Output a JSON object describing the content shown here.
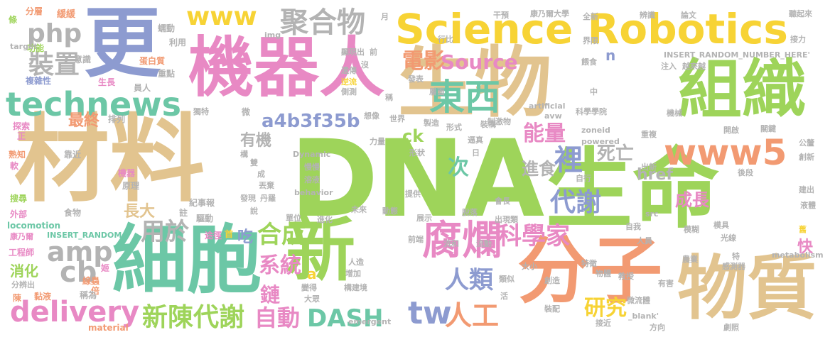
{
  "palette": {
    "tan": "#e2c48f",
    "green": "#9ed45a",
    "yellow": "#f7d335",
    "pink": "#e889c4",
    "orange": "#f29a72",
    "blue": "#8d9bd0",
    "teal": "#6cc7a6",
    "gray": "#b3b3b3"
  },
  "words": [
    {
      "id": "dna",
      "text": "DNA",
      "color": "#9ed45a"
    },
    {
      "id": "cailiao",
      "text": "材料",
      "color": "#e2c48f"
    },
    {
      "id": "shengming",
      "text": "生命",
      "color": "#9ed45a"
    },
    {
      "id": "jiqiren",
      "text": "機器人",
      "color": "#e889c4"
    },
    {
      "id": "shengwu",
      "text": "生物",
      "color": "#e2c48f"
    },
    {
      "id": "xibao",
      "text": "細胞",
      "color": "#6cc7a6"
    },
    {
      "id": "xin",
      "text": "新",
      "color": "#9ed45a"
    },
    {
      "id": "fenzi",
      "text": "分子",
      "color": "#f29a72"
    },
    {
      "id": "wuzhi",
      "text": "物質",
      "color": "#e2c48f"
    },
    {
      "id": "geng",
      "text": "更",
      "color": "#8d9bd0"
    },
    {
      "id": "zuzhi",
      "text": "組織",
      "color": "#9ed45a"
    },
    {
      "id": "science_robotics",
      "text": "Science Robotics",
      "color": "#f7d335"
    },
    {
      "id": "technews",
      "text": "technews",
      "color": "#6cc7a6"
    },
    {
      "id": "dongxi",
      "text": "東西",
      "color": "#6cc7a6"
    },
    {
      "id": "fulan",
      "text": "腐爛",
      "color": "#e889c4"
    },
    {
      "id": "www5",
      "text": "www5",
      "color": "#f29a72"
    },
    {
      "id": "www",
      "text": "www",
      "color": "#f7d335"
    },
    {
      "id": "juhewu",
      "text": "聚合物",
      "color": "#b3b3b3"
    },
    {
      "id": "php",
      "text": "php",
      "color": "#b3b3b3"
    },
    {
      "id": "zhuangzhi",
      "text": "裝置",
      "color": "#b3b3b3"
    },
    {
      "id": "dianying",
      "text": "電影",
      "color": "#f29a72"
    },
    {
      "id": "source",
      "text": "Source",
      "color": "#e889c4"
    },
    {
      "id": "amp",
      "text": "amp",
      "color": "#b3b3b3"
    },
    {
      "id": "yongyu",
      "text": "用於",
      "color": "#b3b3b3"
    },
    {
      "id": "cb",
      "text": "cb",
      "color": "#b3b3b3"
    },
    {
      "id": "delivery",
      "text": "delivery",
      "color": "#e889c4"
    },
    {
      "id": "xinchendaixie",
      "text": "新陳代謝",
      "color": "#9ed45a"
    },
    {
      "id": "zidong",
      "text": "自動",
      "color": "#e889c4"
    },
    {
      "id": "dash",
      "text": "DASH",
      "color": "#6cc7a6"
    },
    {
      "id": "tw",
      "text": "tw",
      "color": "#8d9bd0"
    },
    {
      "id": "rengong",
      "text": "人工",
      "color": "#f29a72"
    },
    {
      "id": "renlei",
      "text": "人類",
      "color": "#8d9bd0"
    },
    {
      "id": "kexuejia",
      "text": "科學家",
      "color": "#e889c4"
    },
    {
      "id": "hecheng",
      "text": "合成",
      "color": "#9ed45a"
    },
    {
      "id": "xitong",
      "text": "系統",
      "color": "#e889c4"
    },
    {
      "id": "lian",
      "text": "鏈",
      "color": "#e889c4"
    },
    {
      "id": "yanjiu",
      "text": "研究",
      "color": "#f7d335"
    },
    {
      "id": "daixie",
      "text": "代謝",
      "color": "#8d9bd0"
    },
    {
      "id": "li",
      "text": "裡",
      "color": "#8d9bd0"
    },
    {
      "id": "nengliang",
      "text": "能量",
      "color": "#e889c4"
    },
    {
      "id": "a4b3f35b",
      "text": "a4b3f35b",
      "color": "#8d9bd0"
    },
    {
      "id": "youji",
      "text": "有機",
      "color": "#b3b3b3"
    },
    {
      "id": "ck",
      "text": "ck",
      "color": "#9ed45a"
    },
    {
      "id": "ci",
      "text": "次",
      "color": "#6cc7a6"
    },
    {
      "id": "jinshi",
      "text": "進食",
      "color": "#b3b3b3"
    },
    {
      "id": "siwang",
      "text": "死亡",
      "color": "#b3b3b3"
    },
    {
      "id": "href",
      "text": "href",
      "color": "#b3b3b3"
    },
    {
      "id": "chengzhang",
      "text": "成長",
      "color": "#e889c4"
    },
    {
      "id": "zhangda",
      "text": "長大",
      "color": "#e2c48f"
    },
    {
      "id": "zuizhong",
      "text": "最終",
      "color": "#f29a72"
    },
    {
      "id": "chi",
      "text": "吃",
      "color": "#8d9bd0"
    },
    {
      "id": "kuai",
      "text": "快",
      "color": "#e889c4"
    },
    {
      "id": "xiaohua",
      "text": "消化",
      "color": "#9ed45a"
    },
    {
      "id": "n",
      "text": "n",
      "color": "#8d9bd0"
    },
    {
      "id": "a",
      "text": "a",
      "color": "#f7d335"
    },
    {
      "id": "fenceng",
      "text": "分層",
      "color": "#f29a72"
    },
    {
      "id": "huanhuan",
      "text": "緩緩",
      "color": "#f29a72"
    },
    {
      "id": "tiao",
      "text": "條",
      "color": "#9ed45a"
    },
    {
      "id": "rutan",
      "text": "蠕動",
      "color": "#b3b3b3"
    },
    {
      "id": "liyong",
      "text": "利用",
      "color": "#b3b3b3"
    },
    {
      "id": "gongneng",
      "text": "功能",
      "color": "#9ed45a"
    },
    {
      "id": "target",
      "text": "target",
      "color": "#b3b3b3"
    },
    {
      "id": "danbaizhi",
      "text": "蛋白質",
      "color": "#f29a72"
    },
    {
      "id": "yishi",
      "text": "意識",
      "color": "#b3b3b3"
    },
    {
      "id": "zhongdian",
      "text": "重點",
      "color": "#b3b3b3"
    },
    {
      "id": "fuzaxing",
      "text": "複雜性",
      "color": "#8d9bd0"
    },
    {
      "id": "shengchan",
      "text": "生長",
      "color": "#e889c4"
    },
    {
      "id": "yuanren",
      "text": "員人",
      "color": "#b3b3b3"
    },
    {
      "id": "pailie",
      "text": "排列",
      "color": "#b3b3b3"
    },
    {
      "id": "tansuo",
      "text": "探索",
      "color": "#e889c4"
    },
    {
      "id": "zheng",
      "text": "正",
      "color": "#e889c4"
    },
    {
      "id": "kaojin",
      "text": "靠近",
      "color": "#b3b3b3"
    },
    {
      "id": "shuzhi",
      "text": "熟知",
      "color": "#f29a72"
    },
    {
      "id": "ruan",
      "text": "軟",
      "color": "#e889c4"
    },
    {
      "id": "jiqi",
      "text": "機器",
      "color": "#e889c4"
    },
    {
      "id": "yuanli",
      "text": "原理",
      "color": "#b3b3b3"
    },
    {
      "id": "soushou",
      "text": "搜尋",
      "color": "#9ed45a"
    },
    {
      "id": "waibu",
      "text": "外部",
      "color": "#e889c4"
    },
    {
      "id": "shiwu",
      "text": "食物",
      "color": "#b3b3b3"
    },
    {
      "id": "locomotion",
      "text": "locomotion",
      "color": "#6cc7a6"
    },
    {
      "id": "kangnaier",
      "text": "康乃爾",
      "color": "#e889c4"
    },
    {
      "id": "insert_random_small",
      "text": "INSERT_RANDOM_",
      "color": "#6cc7a6"
    },
    {
      "id": "gongchengshi",
      "text": "工程師",
      "color": "#e889c4"
    },
    {
      "id": "bei",
      "text": "倍",
      "color": "#f29a72"
    },
    {
      "id": "fenbianchu",
      "text": "分辨出",
      "color": "#b3b3b3"
    },
    {
      "id": "chen",
      "text": "陳",
      "color": "#f29a72"
    },
    {
      "id": "zhanye",
      "text": "黏液",
      "color": "#f29a72"
    },
    {
      "id": "chengwei",
      "text": "稱為",
      "color": "#b3b3b3"
    },
    {
      "id": "xianchong",
      "text": "線蟲",
      "color": "#f29a72"
    },
    {
      "id": "material",
      "text": "material",
      "color": "#f29a72"
    },
    {
      "id": "ji",
      "text": "姬",
      "color": "#e889c4"
    },
    {
      "id": "tujing",
      "text": "途徑",
      "color": "#e889c4"
    },
    {
      "id": "shou",
      "text": "首",
      "color": "#f7d335"
    },
    {
      "id": "qudong",
      "text": "驅動",
      "color": "#b3b3b3"
    },
    {
      "id": "jishibao",
      "text": "紀事報",
      "color": "#b3b3b3"
    },
    {
      "id": "zhu",
      "text": "註",
      "color": "#b3b3b3"
    },
    {
      "id": "img",
      "text": "img",
      "color": "#b3b3b3"
    },
    {
      "id": "xianxianchu",
      "text": "顯現出",
      "color": "#b3b3b3"
    },
    {
      "id": "yichuan",
      "text": "遺傳",
      "color": "#b3b3b3"
    },
    {
      "id": "nixing",
      "text": "逆流",
      "color": "#f7d335"
    },
    {
      "id": "cece",
      "text": "側測",
      "color": "#b3b3b3"
    },
    {
      "id": "wei",
      "text": "微",
      "color": "#b3b3b3"
    },
    {
      "id": "shijie",
      "text": "世界",
      "color": "#b3b3b3"
    },
    {
      "id": "xiangxiang",
      "text": "想像",
      "color": "#b3b3b3"
    },
    {
      "id": "dute",
      "text": "獨特",
      "color": "#b3b3b3"
    },
    {
      "id": "gou",
      "text": "構",
      "color": "#b3b3b3"
    },
    {
      "id": "shuang",
      "text": "雙",
      "color": "#b3b3b3"
    },
    {
      "id": "cheng",
      "text": "成",
      "color": "#b3b3b3"
    },
    {
      "id": "diuqi",
      "text": "丟棄",
      "color": "#b3b3b3"
    },
    {
      "id": "faxian",
      "text": "發現",
      "color": "#b3b3b3"
    },
    {
      "id": "danluo",
      "text": "丹羅",
      "color": "#b3b3b3"
    },
    {
      "id": "shuo",
      "text": "說",
      "color": "#b3b3b3"
    },
    {
      "id": "danwei",
      "text": "單位",
      "color": "#b3b3b3"
    },
    {
      "id": "jinhua",
      "text": "進化",
      "color": "#b3b3b3"
    },
    {
      "id": "weilai",
      "text": "未來",
      "color": "#b3b3b3"
    },
    {
      "id": "dongtai",
      "text": "動態",
      "color": "#b3b3b3"
    },
    {
      "id": "zhanshi",
      "text": "展示",
      "color": "#b3b3b3"
    },
    {
      "id": "tuoluo",
      "text": "脫落",
      "color": "#b3b3b3"
    },
    {
      "id": "chuxianxiang",
      "text": "出現類",
      "color": "#b3b3b3"
    },
    {
      "id": "zhizao",
      "text": "製造",
      "color": "#b3b3b3"
    },
    {
      "id": "xingshi",
      "text": "形式",
      "color": "#b3b3b3"
    },
    {
      "id": "zhuanggou",
      "text": "裝構",
      "color": "#b3b3b3"
    },
    {
      "id": "bizhen",
      "text": "逼真",
      "color": "#b3b3b3"
    },
    {
      "id": "ri",
      "text": "日",
      "color": "#b3b3b3"
    },
    {
      "id": "liliang",
      "text": "力量",
      "color": "#b3b3b3"
    },
    {
      "id": "xingzhuang",
      "text": "形狀",
      "color": "#b3b3b3"
    },
    {
      "id": "dynamic",
      "text": "Dynamic",
      "color": "#b3b3b3"
    },
    {
      "id": "manman",
      "text": "慢慢",
      "color": "#b3b3b3"
    },
    {
      "id": "rongye",
      "text": "溶液",
      "color": "#b3b3b3"
    },
    {
      "id": "behavior",
      "text": "behavior",
      "color": "#b3b3b3"
    },
    {
      "id": "tigong",
      "text": "提供",
      "color": "#b3b3b3"
    },
    {
      "id": "huihui",
      "text": "會長",
      "color": "#b3b3b3"
    },
    {
      "id": "zixing",
      "text": "自行",
      "color": "#b3b3b3"
    },
    {
      "id": "chuxin",
      "text": "出新",
      "color": "#b3b3b3"
    },
    {
      "id": "fabiao",
      "text": "發表",
      "color": "#b3b3b3"
    },
    {
      "id": "cengmian",
      "text": "層面",
      "color": "#b3b3b3"
    },
    {
      "id": "cheng2",
      "text": "稱",
      "color": "#b3b3b3"
    },
    {
      "id": "zhijiwu",
      "text": "制激物",
      "color": "#b3b3b3"
    },
    {
      "id": "kexueyuan",
      "text": "科學學院",
      "color": "#b3b3b3"
    },
    {
      "id": "artificial",
      "text": "artificial",
      "color": "#b3b3b3"
    },
    {
      "id": "avw",
      "text": "avw",
      "color": "#b3b3b3"
    },
    {
      "id": "zhong",
      "text": "中",
      "color": "#b3b3b3"
    },
    {
      "id": "zoneid",
      "text": "zoneid",
      "color": "#b3b3b3"
    },
    {
      "id": "powered",
      "text": "powered",
      "color": "#b3b3b3"
    },
    {
      "id": "chongfu",
      "text": "重複",
      "color": "#b3b3b3"
    },
    {
      "id": "jixie",
      "text": "機械",
      "color": "#b3b3b3"
    },
    {
      "id": "kaiqi",
      "text": "開啟",
      "color": "#b3b3b3"
    },
    {
      "id": "guanjian",
      "text": "關鍵",
      "color": "#b3b3b3"
    },
    {
      "id": "gongxin",
      "text": "公釐",
      "color": "#b3b3b3"
    },
    {
      "id": "chuangxin",
      "text": "創新",
      "color": "#b3b3b3"
    },
    {
      "id": "houduan",
      "text": "後段",
      "color": "#b3b3b3"
    },
    {
      "id": "jianchu",
      "text": "建出",
      "color": "#b3b3b3"
    },
    {
      "id": "yegan",
      "text": "液體",
      "color": "#b3b3b3"
    },
    {
      "id": "moju",
      "text": "模具",
      "color": "#b3b3b3"
    },
    {
      "id": "src",
      "text": "src",
      "color": "#b3b3b3"
    },
    {
      "id": "ziwo",
      "text": "自我",
      "color": "#b3b3b3"
    },
    {
      "id": "mohu",
      "text": "模糊",
      "color": "#b3b3b3"
    },
    {
      "id": "renyuan",
      "text": "人員",
      "color": "#b3b3b3"
    },
    {
      "id": "guangxian",
      "text": "光線",
      "color": "#b3b3b3"
    },
    {
      "id": "jiu",
      "text": "舊",
      "color": "#f7d335"
    },
    {
      "id": "metabolism",
      "text": "metabolism",
      "color": "#b3b3b3"
    },
    {
      "id": "te",
      "text": "特",
      "color": "#b3b3b3"
    },
    {
      "id": "nongye",
      "text": "農業",
      "color": "#b3b3b3"
    },
    {
      "id": "ganceqi",
      "text": "感測器",
      "color": "#b3b3b3"
    },
    {
      "id": "tezheng",
      "text": "特徵",
      "color": "#b3b3b3"
    },
    {
      "id": "wupin",
      "text": "物體",
      "color": "#b3b3b3"
    },
    {
      "id": "jiaoshou",
      "text": "教授",
      "color": "#b3b3b3"
    },
    {
      "id": "youhai",
      "text": "有害",
      "color": "#b3b3b3"
    },
    {
      "id": "chuangzao",
      "text": "創造",
      "color": "#b3b3b3"
    },
    {
      "id": "weiliuti",
      "text": "微流體",
      "color": "#b3b3b3"
    },
    {
      "id": "jiejin",
      "text": "接近",
      "color": "#b3b3b3"
    },
    {
      "id": "blank",
      "text": "_blank'",
      "color": "#b3b3b3"
    },
    {
      "id": "fangxiang",
      "text": "方向",
      "color": "#b3b3b3"
    },
    {
      "id": "juzhao",
      "text": "劇照",
      "color": "#b3b3b3"
    },
    {
      "id": "zhuru",
      "text": "注入",
      "color": "#b3b3b3"
    },
    {
      "id": "jieli",
      "text": "接力",
      "color": "#b3b3b3"
    },
    {
      "id": "yue",
      "text": "月",
      "color": "#b3b3b3"
    },
    {
      "id": "qian",
      "text": "前",
      "color": "#b3b3b3"
    },
    {
      "id": "mei",
      "text": "沒",
      "color": "#b3b3b3"
    },
    {
      "id": "xingbi",
      "text": "行比",
      "color": "#b3b3b3"
    },
    {
      "id": "ganyu",
      "text": "干預",
      "color": "#b3b3b3"
    },
    {
      "id": "kangnaierdaxue",
      "text": "康乃爾大學",
      "color": "#b3b3b3"
    },
    {
      "id": "quanxin",
      "text": "全新",
      "color": "#b3b3b3"
    },
    {
      "id": "bianshi",
      "text": "辨識",
      "color": "#b3b3b3"
    },
    {
      "id": "lunwen",
      "text": "論文",
      "color": "#b3b3b3"
    },
    {
      "id": "tingqilai",
      "text": "聽起來",
      "color": "#b3b3b3"
    },
    {
      "id": "jiexian",
      "text": "界限",
      "color": "#b3b3b3"
    },
    {
      "id": "insert_random_big",
      "text": "INSERT_RANDOM_NUMBER_HERE'",
      "color": "#b3b3b3"
    },
    {
      "id": "yuelaiyue",
      "text": "越來越",
      "color": "#b3b3b3"
    },
    {
      "id": "dianshi",
      "text": "餵食",
      "color": "#b3b3b3"
    },
    {
      "id": "emergent",
      "text": "emergent",
      "color": "#b3b3b3"
    },
    {
      "id": "dazhong",
      "text": "大眾",
      "color": "#b3b3b3"
    },
    {
      "id": "gouzhujing",
      "text": "構建境",
      "color": "#b3b3b3"
    },
    {
      "id": "bian",
      "text": "變得",
      "color": "#b3b3b3"
    },
    {
      "id": "zengjia",
      "text": "增加",
      "color": "#b3b3b3"
    },
    {
      "id": "renzao",
      "text": "人造",
      "color": "#b3b3b3"
    },
    {
      "id": "liuhe",
      "text": "流和",
      "color": "#b3b3b3"
    },
    {
      "id": "liudong",
      "text": "流動",
      "color": "#b3b3b3"
    },
    {
      "id": "qianduan",
      "text": "前端",
      "color": "#b3b3b3"
    },
    {
      "id": "leisi",
      "text": "類似",
      "color": "#b3b3b3"
    },
    {
      "id": "dasi",
      "text": "大小",
      "color": "#b3b3b3"
    },
    {
      "id": "huo",
      "text": "活",
      "color": "#b3b3b3"
    },
    {
      "id": "zhuangpei",
      "text": "裝配",
      "color": "#b3b3b3"
    }
  ]
}
